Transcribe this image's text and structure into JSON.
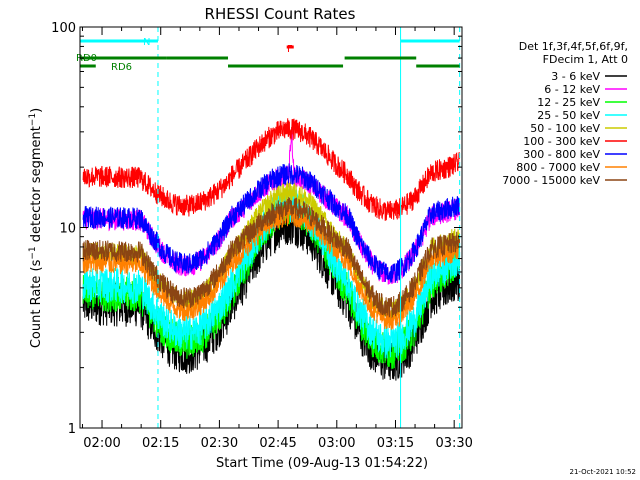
{
  "chart_data": {
    "type": "line",
    "title": "RHESSI Count Rates",
    "xlabel": "Start Time (09-Aug-13 01:54:22)",
    "ylabel": "Count Rate (s",
    "ylabel_sup": "−1",
    "ylabel_mid": " detector segment",
    "ylabel_sup2": "−1",
    "ylabel_end": ")",
    "y_scale": "log",
    "ylim": [
      1,
      100
    ],
    "xlim_minutes": [
      114.37,
      212.0
    ],
    "x_ticks": [
      {
        "t": 120,
        "label": "02:00"
      },
      {
        "t": 135,
        "label": "02:15"
      },
      {
        "t": 150,
        "label": "02:30"
      },
      {
        "t": 165,
        "label": "02:45"
      },
      {
        "t": 180,
        "label": "03:00"
      },
      {
        "t": 195,
        "label": "03:15"
      },
      {
        "t": 210,
        "label": "03:30"
      }
    ],
    "y_ticks": [
      {
        "v": 1,
        "label": "1"
      },
      {
        "v": 10,
        "label": "10"
      },
      {
        "v": 100,
        "label": "100"
      }
    ],
    "legend_header": [
      "Det 1f,3f,4f,5f,6f,9f,",
      "FDecim 1, Att 0"
    ],
    "series": [
      {
        "name": "3 - 6 keV",
        "color": "#000000",
        "base": 4.0,
        "peak": 10.5,
        "end": 5.6,
        "wide": 1.0,
        "spike": 0
      },
      {
        "name": "6 - 12 keV",
        "color": "#ff00ff",
        "base": 10.8,
        "peak": 18.0,
        "end": 12.5,
        "wide": 1.0,
        "spike": 10
      },
      {
        "name": "12 - 25 keV",
        "color": "#00ff00",
        "base": 4.5,
        "peak": 12.5,
        "end": 7.0,
        "wide": 1.0,
        "spike": 0
      },
      {
        "name": "25 - 50 keV",
        "color": "#00ffff",
        "base": 5.0,
        "peak": 13.0,
        "end": 7.2,
        "wide": 1.0,
        "spike": 0
      },
      {
        "name": "50 - 100 keV",
        "color": "#cccc00",
        "base": 7.2,
        "peak": 15.0,
        "end": 9.0,
        "wide": 1.0,
        "spike": 0
      },
      {
        "name": "100 - 300 keV",
        "color": "#ff0000",
        "base": 17.5,
        "peak": 31.0,
        "end": 21.0,
        "wide": 1.0,
        "spike": 0
      },
      {
        "name": "300 - 800 keV",
        "color": "#0000ff",
        "base": 11.0,
        "peak": 18.5,
        "end": 13.0,
        "wide": 1.0,
        "spike": 0
      },
      {
        "name": "800 - 7000 keV",
        "color": "#ff8000",
        "base": 6.5,
        "peak": 11.5,
        "end": 7.8,
        "wide": 1.0,
        "spike": 0
      },
      {
        "name": "7000 - 15000 keV",
        "color": "#8b4513",
        "base": 7.5,
        "peak": 12.5,
        "end": 8.5,
        "wide": 1.0,
        "spike": 0
      }
    ],
    "annotations": {
      "night_label": "N",
      "flare_label": "F",
      "rd0_label": "RD0",
      "rd6_label": "RD6"
    },
    "night_intervals": [
      [
        114.37,
        134.3
      ],
      [
        196.3,
        211.4
      ]
    ],
    "flare_interval": [
      167.2,
      169.0
    ],
    "rd0_intervals": [
      [
        114.37,
        136.5
      ],
      [
        136.5,
        152.2
      ],
      [
        182.0,
        200.3
      ]
    ],
    "rd6_intervals": [
      [
        114.37,
        118.4
      ],
      [
        152.2,
        181.6
      ],
      [
        200.3,
        211.4
      ]
    ],
    "cyan_lines": [
      {
        "t": 114.37,
        "style": "solid"
      },
      {
        "t": 134.3,
        "style": "dashed"
      },
      {
        "t": 196.3,
        "style": "solid"
      },
      {
        "t": 211.4,
        "style": "dashed"
      }
    ],
    "colors": {
      "cyan": "#00ffff",
      "green": "#008000",
      "red": "#ff0000"
    }
  },
  "footer": {
    "date": "21-Oct-2021 10:52"
  }
}
